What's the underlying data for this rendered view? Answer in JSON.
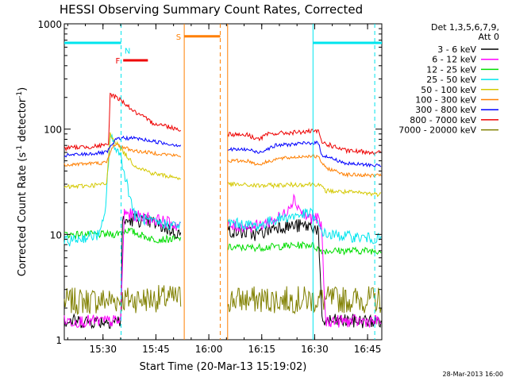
{
  "chart_data": {
    "type": "line",
    "title": "HESSI Observing Summary Count Rates, Corrected",
    "xlabel": "Start Time (20-Mar-13 15:19:02)",
    "ylabel_main": "Corrected Count Rate (s",
    "ylabel_sup1": "-1",
    "ylabel_mid": " detector",
    "ylabel_sup2": "-1",
    "ylabel_end": ")",
    "footer": "28-Mar-2013 16:00",
    "y_scale": "log",
    "ylim": [
      1,
      1000
    ],
    "xlim_minutes": [
      0,
      90
    ],
    "x_ticks": [
      {
        "m": 10.97,
        "label": "15:30"
      },
      {
        "m": 25.97,
        "label": "15:45"
      },
      {
        "m": 40.97,
        "label": "16:00"
      },
      {
        "m": 55.97,
        "label": "16:15"
      },
      {
        "m": 70.97,
        "label": "16:30"
      },
      {
        "m": 85.97,
        "label": "16:45"
      }
    ],
    "y_ticks": [
      {
        "v": 1,
        "label": "1"
      },
      {
        "v": 10,
        "label": "10"
      },
      {
        "v": 100,
        "label": "100"
      },
      {
        "v": 1000,
        "label": "1000"
      }
    ],
    "legend_header": [
      "Det 1,3,5,6,7,9,",
      "Att 0"
    ],
    "legend": [
      {
        "label": "3 - 6 keV",
        "color": "#000000"
      },
      {
        "label": "6 - 12 keV",
        "color": "#ff00ff"
      },
      {
        "label": "12 - 25 keV",
        "color": "#00dd00"
      },
      {
        "label": "25 - 50 keV",
        "color": "#00e5ee"
      },
      {
        "label": "50 - 100 keV",
        "color": "#d4c800"
      },
      {
        "label": "100 - 300 keV",
        "color": "#ff7f00"
      },
      {
        "label": "300 - 800 keV",
        "color": "#0000ff"
      },
      {
        "label": "800 - 7000 keV",
        "color": "#ee0000"
      },
      {
        "label": "7000 - 20000 keV",
        "color": "#808000"
      }
    ],
    "state_bars": [
      {
        "label": "",
        "color": "#00e5ee",
        "start": 0,
        "end": 16.1,
        "level": 660
      },
      {
        "label": "N",
        "color": "#00e5ee",
        "start": 16.1,
        "end": 16.1,
        "level": 560
      },
      {
        "label": "F",
        "color": "#ee0000",
        "start": 16.7,
        "end": 23.7,
        "level": 450
      },
      {
        "label": "S",
        "color": "#ff7f00",
        "start": 34.0,
        "end": 44.2,
        "level": 760
      },
      {
        "label": "",
        "color": "#00e5ee",
        "start": 70.5,
        "end": 90,
        "level": 660
      }
    ],
    "vlines": [
      {
        "m": 16.1,
        "color": "#00e5ee",
        "dash": true
      },
      {
        "m": 34.0,
        "color": "#ff7f00",
        "dash": false
      },
      {
        "m": 44.2,
        "color": "#ff7f00",
        "dash": true
      },
      {
        "m": 46.3,
        "color": "#ff7f00",
        "dash": false
      },
      {
        "m": 70.5,
        "color": "#00e5ee",
        "dash": false
      },
      {
        "m": 88.0,
        "color": "#00e5ee",
        "dash": true
      }
    ],
    "segments": [
      [
        0,
        33.2
      ],
      [
        46.3,
        90
      ]
    ],
    "series": [
      {
        "name": "800 - 7000 keV",
        "color": "#ee0000",
        "noise": 0.05,
        "points": [
          [
            0,
            66
          ],
          [
            12.5,
            70
          ],
          [
            13,
            215
          ],
          [
            16,
            190
          ],
          [
            20,
            145
          ],
          [
            25,
            115
          ],
          [
            30,
            105
          ],
          [
            33.2,
            98
          ],
          [
            46.3,
            90
          ],
          [
            52,
            88
          ],
          [
            55,
            80
          ],
          [
            58,
            90
          ],
          [
            70,
            95
          ],
          [
            72,
            95
          ],
          [
            73,
            75
          ],
          [
            80,
            62
          ],
          [
            90,
            60
          ]
        ]
      },
      {
        "name": "300 - 800 keV",
        "color": "#0000ff",
        "noise": 0.04,
        "points": [
          [
            0,
            56
          ],
          [
            12,
            60
          ],
          [
            15,
            82
          ],
          [
            20,
            82
          ],
          [
            30,
            72
          ],
          [
            33.2,
            70
          ],
          [
            46.3,
            64
          ],
          [
            52,
            64
          ],
          [
            55,
            60
          ],
          [
            60,
            70
          ],
          [
            70,
            74
          ],
          [
            72,
            74
          ],
          [
            73,
            57
          ],
          [
            80,
            47
          ],
          [
            90,
            45
          ]
        ]
      },
      {
        "name": "100 - 300 keV",
        "color": "#ff7f00",
        "noise": 0.04,
        "points": [
          [
            0,
            46
          ],
          [
            12,
            48
          ],
          [
            14,
            72
          ],
          [
            20,
            62
          ],
          [
            30,
            57
          ],
          [
            33.2,
            55
          ],
          [
            46.3,
            50
          ],
          [
            52,
            50
          ],
          [
            55,
            46
          ],
          [
            60,
            52
          ],
          [
            70,
            56
          ],
          [
            72,
            54
          ],
          [
            74,
            43
          ],
          [
            80,
            37
          ],
          [
            90,
            36
          ]
        ]
      },
      {
        "name": "50 - 100 keV",
        "color": "#d4c800",
        "noise": 0.05,
        "points": [
          [
            0,
            28
          ],
          [
            12,
            30
          ],
          [
            13,
            90
          ],
          [
            16,
            65
          ],
          [
            20,
            45
          ],
          [
            25,
            38
          ],
          [
            33.2,
            34
          ],
          [
            46.3,
            30
          ],
          [
            55,
            29
          ],
          [
            70,
            30
          ],
          [
            72,
            30
          ],
          [
            74,
            26
          ],
          [
            90,
            24
          ]
        ]
      },
      {
        "name": "25 - 50 keV",
        "color": "#00e5ee",
        "noise": 0.12,
        "points": [
          [
            0,
            8.5
          ],
          [
            10,
            10
          ],
          [
            11.5,
            15
          ],
          [
            13,
            85
          ],
          [
            16,
            55
          ],
          [
            18,
            28
          ],
          [
            20,
            15
          ],
          [
            25,
            13
          ],
          [
            33.2,
            12
          ],
          [
            46.3,
            13
          ],
          [
            55,
            12
          ],
          [
            60,
            14
          ],
          [
            70,
            16
          ],
          [
            72,
            12
          ],
          [
            74,
            10
          ],
          [
            90,
            9
          ]
        ]
      },
      {
        "name": "6 - 12 keV",
        "color": "#ff00ff",
        "noise": 0.14,
        "points": [
          [
            0,
            1.5
          ],
          [
            16,
            1.5
          ],
          [
            17,
            16
          ],
          [
            20,
            15
          ],
          [
            25,
            14
          ],
          [
            33.2,
            12
          ],
          [
            46.3,
            12
          ],
          [
            55,
            12
          ],
          [
            62,
            15
          ],
          [
            65,
            22
          ],
          [
            68,
            15
          ],
          [
            72,
            14
          ],
          [
            73,
            11
          ],
          [
            74,
            1.5
          ],
          [
            90,
            1.5
          ]
        ]
      },
      {
        "name": "3 - 6 keV",
        "color": "#000000",
        "noise": 0.16,
        "points": [
          [
            0,
            1.5
          ],
          [
            16,
            1.5
          ],
          [
            16.5,
            13
          ],
          [
            20,
            14
          ],
          [
            25,
            13
          ],
          [
            33.2,
            10
          ],
          [
            46.3,
            11
          ],
          [
            55,
            10
          ],
          [
            60,
            12
          ],
          [
            70,
            12
          ],
          [
            72,
            11
          ],
          [
            73,
            1.5
          ],
          [
            90,
            1.5
          ]
        ]
      },
      {
        "name": "12 - 25 keV",
        "color": "#00dd00",
        "noise": 0.08,
        "points": [
          [
            0,
            10
          ],
          [
            14,
            10
          ],
          [
            18,
            11
          ],
          [
            25,
            9
          ],
          [
            33.2,
            9
          ],
          [
            46.3,
            7.5
          ],
          [
            55,
            7.5
          ],
          [
            70,
            8
          ],
          [
            73,
            7
          ],
          [
            90,
            7
          ]
        ]
      },
      {
        "name": "7000 - 20000 keV",
        "color": "#808000",
        "noise": 0.3,
        "points": [
          [
            0,
            2.3
          ],
          [
            33.2,
            2.5
          ],
          [
            46.3,
            2.4
          ],
          [
            90,
            2.4
          ]
        ]
      }
    ]
  }
}
